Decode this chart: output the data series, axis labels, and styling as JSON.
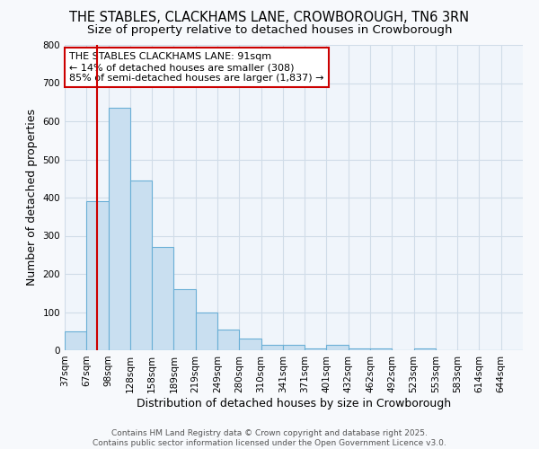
{
  "title": "THE STABLES, CLACKHAMS LANE, CROWBOROUGH, TN6 3RN",
  "subtitle": "Size of property relative to detached houses in Crowborough",
  "xlabel": "Distribution of detached houses by size in Crowborough",
  "ylabel": "Number of detached properties",
  "categories": [
    "37sqm",
    "67sqm",
    "98sqm",
    "128sqm",
    "158sqm",
    "189sqm",
    "219sqm",
    "249sqm",
    "280sqm",
    "310sqm",
    "341sqm",
    "371sqm",
    "401sqm",
    "432sqm",
    "462sqm",
    "492sqm",
    "523sqm",
    "553sqm",
    "583sqm",
    "614sqm",
    "644sqm"
  ],
  "values": [
    50,
    390,
    635,
    445,
    270,
    160,
    100,
    55,
    30,
    15,
    15,
    5,
    13,
    5,
    5,
    0,
    5,
    0,
    0,
    0,
    0
  ],
  "bar_color": "#c9dff0",
  "bar_edge_color": "#6aafd6",
  "red_line_x": 1.5,
  "annotation_text": "THE STABLES CLACKHAMS LANE: 91sqm\n← 14% of detached houses are smaller (308)\n85% of semi-detached houses are larger (1,837) →",
  "annotation_box_color": "#ffffff",
  "annotation_border_color": "#cc0000",
  "ylim": [
    0,
    800
  ],
  "yticks": [
    0,
    100,
    200,
    300,
    400,
    500,
    600,
    700,
    800
  ],
  "footer_text": "Contains HM Land Registry data © Crown copyright and database right 2025.\nContains public sector information licensed under the Open Government Licence v3.0.",
  "background_color": "#f7f9fc",
  "plot_background_color": "#f0f5fb",
  "grid_color": "#d0dce8",
  "title_fontsize": 10.5,
  "subtitle_fontsize": 9.5,
  "axis_label_fontsize": 9,
  "tick_fontsize": 7.5,
  "annotation_fontsize": 8,
  "footer_fontsize": 6.5
}
